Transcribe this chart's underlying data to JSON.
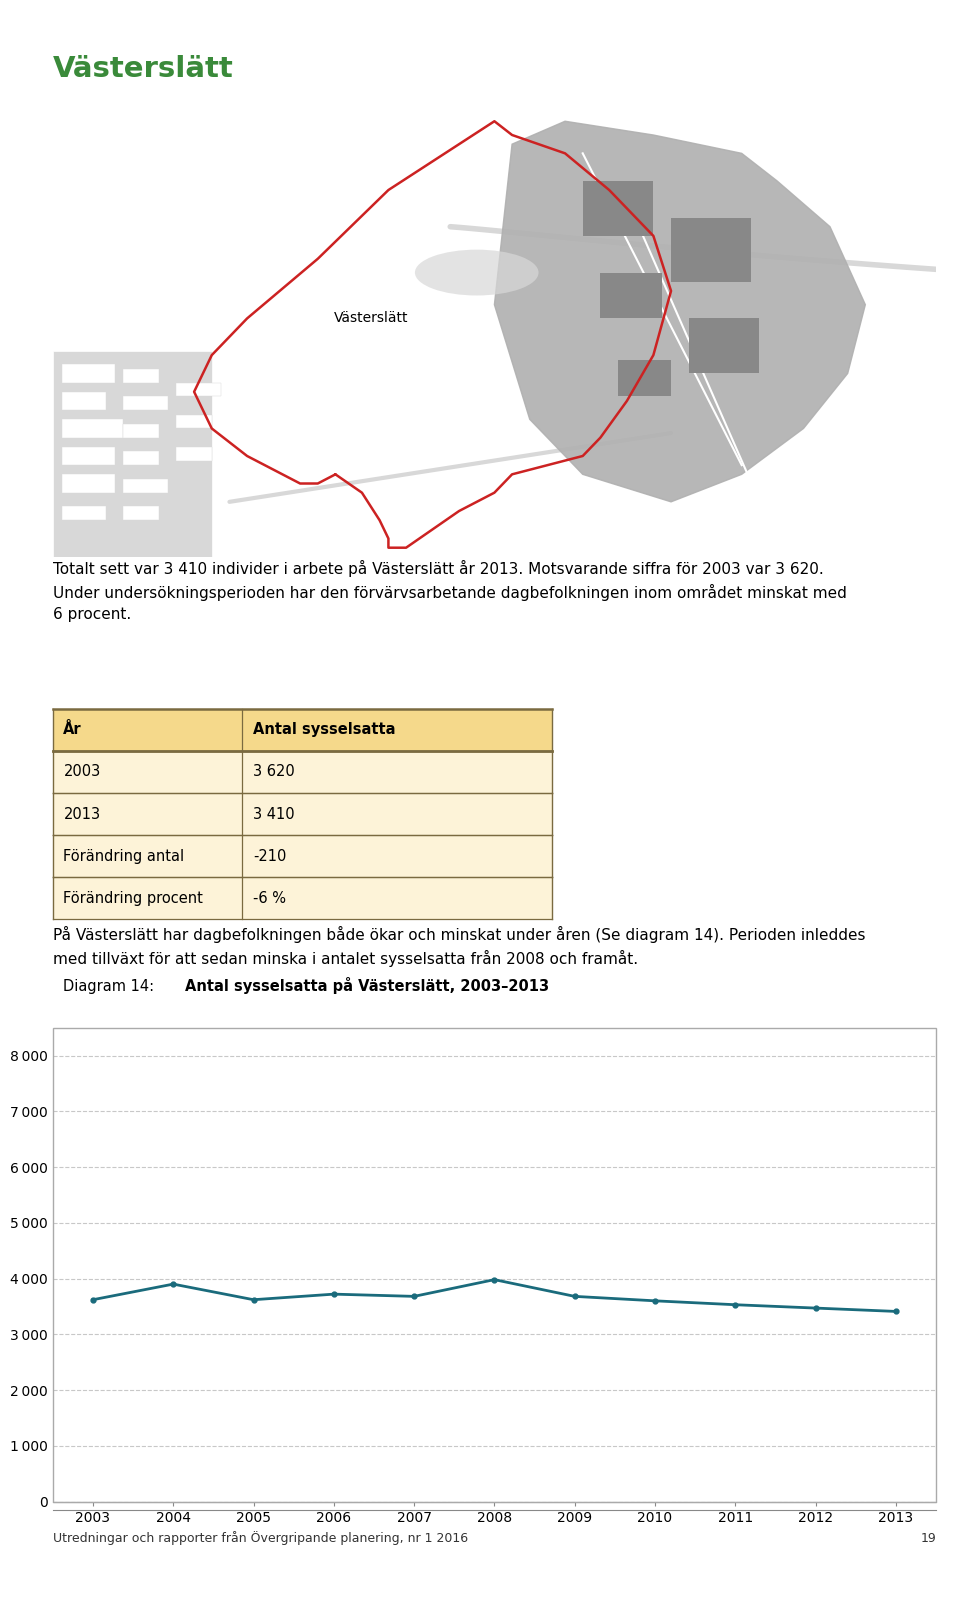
{
  "title": "Västerslätt",
  "title_color": "#3a8a3a",
  "body_text_1": "Totalt sett var 3 410 individer i arbete på Västerslätt år 2013. Motsvarande siffra för 2003 var 3 620.\nUnder undersökningsperioden har den förvärvsarbetande dagbefolkningen inom området minskat med\n6 procent.",
  "table_header_bg": "#f5d98b",
  "table_header_text": [
    "År",
    "Antal sysselsatta"
  ],
  "table_rows": [
    [
      "2003",
      "3 620"
    ],
    [
      "2013",
      "3 410"
    ],
    [
      "Förändring antal",
      "-210"
    ],
    [
      "Förändring procent",
      "-6 %"
    ]
  ],
  "table_row_bg": "#fdf3d8",
  "para_text": "På Västerslätt har dagbefolkningen både ökar och minskat under åren (Se diagram 14). Perioden inleddes\nmed tillväxt för att sedan minska i antalet sysselsatta från 2008 och framåt.",
  "diagram_title_prefix": "Diagram 14: ",
  "diagram_title_bold": "Antal sysselsatta på Västerslätt, 2003–2013",
  "years": [
    2003,
    2004,
    2005,
    2006,
    2007,
    2008,
    2009,
    2010,
    2011,
    2012,
    2013
  ],
  "values": [
    3620,
    3900,
    3620,
    3720,
    3680,
    3980,
    3680,
    3600,
    3530,
    3470,
    3410
  ],
  "line_color": "#1a6b7c",
  "line_width": 2.0,
  "y_ticks": [
    0,
    1000,
    2000,
    3000,
    4000,
    5000,
    6000,
    7000,
    8000
  ],
  "y_max": 8500,
  "grid_color": "#c8c8c8",
  "chart_border_color": "#aaaaaa",
  "footer_text": "Utredningar och rapporter från Övergripande planering, nr 1 2016",
  "footer_page": "19",
  "bg_color": "#ffffff",
  "map_bg": "#ffffff",
  "map_light_gray": "#d8d8d8",
  "map_med_gray": "#b0b0b0",
  "map_dark_gray": "#888888",
  "map_red": "#cc2222",
  "map_label": "Västerslätt"
}
